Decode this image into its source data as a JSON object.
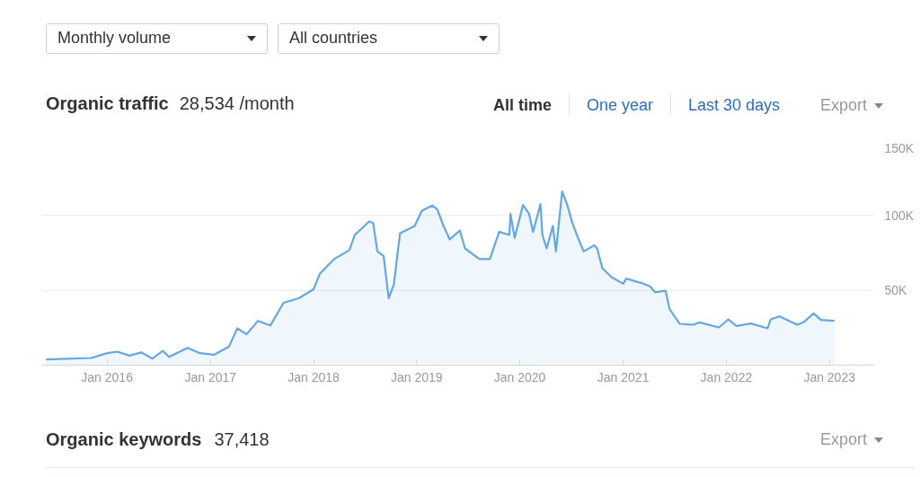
{
  "chart_data": {
    "type": "area",
    "title": "Organic traffic",
    "subtitle": "28,534 /month",
    "annotations": [
      "Monthly volume",
      "All countries",
      "All time",
      "One year",
      "Last 30 days",
      "Export",
      "Organic keywords",
      "37,418",
      "Export"
    ],
    "x": [
      "2015-05-30",
      "2015-11-06",
      "2016-01-01",
      "2016-02-06",
      "2016-03-21",
      "2016-05-01",
      "2016-06-10",
      "2016-07-16",
      "2016-08-08",
      "2016-10-12",
      "2016-11-25",
      "2017-01-15",
      "2017-03-08",
      "2017-04-06",
      "2017-05-09",
      "2017-06-18",
      "2017-08-01",
      "2017-09-17",
      "2017-11-10",
      "2018-01-01",
      "2018-01-23",
      "2018-03-15",
      "2018-05-08",
      "2018-05-27",
      "2018-07-17",
      "2018-07-31",
      "2018-08-15",
      "2018-09-06",
      "2018-09-24",
      "2018-10-12",
      "2018-11-03",
      "2018-12-25",
      "2019-01-19",
      "2019-02-25",
      "2019-03-15",
      "2019-04-06",
      "2019-04-28",
      "2019-06-03",
      "2019-06-21",
      "2019-08-11",
      "2019-09-17",
      "2019-10-20",
      "2019-11-25",
      "2019-11-29",
      "2019-12-14",
      "2020-01-12",
      "2020-02-03",
      "2020-02-17",
      "2020-03-14",
      "2020-03-21",
      "2020-04-05",
      "2020-04-27",
      "2020-05-08",
      "2020-05-30",
      "2020-06-17",
      "2020-07-05",
      "2020-07-23",
      "2020-08-14",
      "2020-09-20",
      "2020-10-01",
      "2020-10-19",
      "2020-11-21",
      "2021-01-01",
      "2021-01-12",
      "2021-03-04",
      "2021-04-06",
      "2021-04-24",
      "2021-05-31",
      "2021-06-14",
      "2021-07-20",
      "2021-09-06",
      "2021-09-28",
      "2021-12-06",
      "2022-01-08",
      "2022-02-06",
      "2022-03-29",
      "2022-05-27",
      "2022-06-07",
      "2022-07-09",
      "2022-09-09",
      "2022-10-01",
      "2022-11-06",
      "2022-12-02",
      "2023-01-19"
    ],
    "series": [
      {
        "color": "#64a7e2",
        "values": [
          3800,
          4800,
          8000,
          9000,
          6400,
          8500,
          4400,
          9500,
          5500,
          11500,
          8000,
          7000,
          12500,
          24600,
          20600,
          29600,
          26500,
          41700,
          44700,
          50700,
          61000,
          70900,
          76900,
          87000,
          96000,
          95000,
          76000,
          73000,
          44700,
          53800,
          88000,
          93000,
          103000,
          106700,
          104000,
          93000,
          84000,
          90000,
          78000,
          70900,
          70900,
          89000,
          87000,
          101000,
          85000,
          107000,
          101000,
          89000,
          107600,
          87000,
          78000,
          93000,
          76000,
          116000,
          107000,
          95000,
          86000,
          76000,
          80000,
          78000,
          64800,
          58800,
          54400,
          57800,
          55000,
          52700,
          48700,
          49700,
          37600,
          27600,
          27000,
          28600,
          25200,
          30600,
          26200,
          27800,
          24600,
          30600,
          32600,
          27000,
          28600,
          34600,
          30200,
          29600
        ]
      }
    ],
    "xlim": [
      "2015-05-15",
      "2023-06-10"
    ],
    "xticks": [
      {
        "value": "2016-01-01",
        "label": "Jan 2016"
      },
      {
        "value": "2017-01-01",
        "label": "Jan 2017"
      },
      {
        "value": "2018-01-01",
        "label": "Jan 2018"
      },
      {
        "value": "2019-01-01",
        "label": "Jan 2019"
      },
      {
        "value": "2020-01-01",
        "label": "Jan 2020"
      },
      {
        "value": "2021-01-01",
        "label": "Jan 2021"
      },
      {
        "value": "2022-01-01",
        "label": "Jan 2022"
      },
      {
        "value": "2023-01-01",
        "label": "Jan 2023"
      }
    ],
    "ylim": [
      0,
      150000
    ],
    "yticks": [
      {
        "value": 50000,
        "label": "50K"
      },
      {
        "value": 100000,
        "label": "100K"
      },
      {
        "value": 150000,
        "label": "150K"
      }
    ],
    "grid": "y"
  }
}
